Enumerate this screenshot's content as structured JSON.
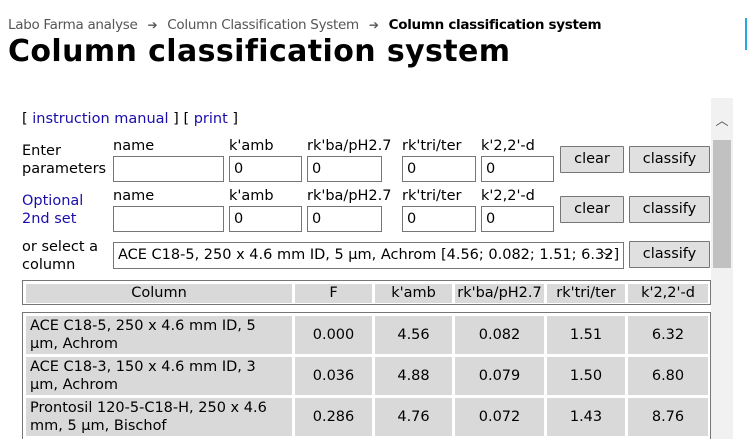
{
  "breadcrumb": {
    "items": [
      "Labo Farma analyse",
      "Column Classification System"
    ],
    "current": "Column classification system"
  },
  "page": {
    "title": "Column classification system"
  },
  "links": {
    "instruction_manual": "instruction manual",
    "print": "print"
  },
  "form": {
    "row1": {
      "label_line1": "Enter",
      "label_line2": "parameters",
      "values": {
        "name": "",
        "kamb": "0",
        "rkba": "0",
        "rktri": "0",
        "k22d": "0"
      }
    },
    "row2": {
      "label_line1": "Optional",
      "label_line2": "2nd set",
      "values": {
        "name": "",
        "kamb": "0",
        "rkba": "0",
        "rktri": "0",
        "k22d": "0"
      }
    },
    "row3": {
      "label_line1": "or select a",
      "label_line2": "column",
      "selected": "ACE C18-5, 250 x 4.6 mm ID, 5 µm, Achrom [4.56; 0.082; 1.51; 6.32]"
    },
    "field_labels": {
      "name": "name",
      "kamb": "k'amb",
      "rkba": "rk'ba/pH2.7",
      "rktri": "rk'tri/ter",
      "k22d": "k'2,2'-d"
    },
    "buttons": {
      "clear": "clear",
      "classify": "classify"
    }
  },
  "table": {
    "headers": [
      "Column",
      "F",
      "k'amb",
      "rk'ba/pH2.7",
      "rk'tri/ter",
      "k'2,2'-d"
    ],
    "rows": [
      {
        "name_line1": "ACE C18-5, 250 x 4.6 mm ID, 5",
        "name_line2": "µm, Achrom",
        "F": "0.000",
        "kamb": "4.56",
        "rkba": "0.082",
        "rktri": "1.51",
        "k22d": "6.32"
      },
      {
        "name_line1": "ACE C18-3, 150 x 4.6 mm ID, 3",
        "name_line2": "µm, Achrom",
        "F": "0.036",
        "kamb": "4.88",
        "rkba": "0.079",
        "rktri": "1.50",
        "k22d": "6.80"
      },
      {
        "name_line1": "Prontosil 120-5-C18-H, 250 x 4.6",
        "name_line2": "mm, 5 µm, Bischof",
        "F": "0.286",
        "kamb": "4.76",
        "rkba": "0.072",
        "rktri": "1.43",
        "k22d": "8.76"
      }
    ]
  },
  "colors": {
    "link": "#1a0dab",
    "cell_bg": "#d9d9d9",
    "button_bg": "#e0e0e0",
    "edge_accent": "#29a8e0"
  },
  "icons": {
    "breadcrumb_separator": "arrow-right-icon",
    "scroll_up": "chevron-up-icon",
    "select_open": "chevron-down-icon"
  }
}
